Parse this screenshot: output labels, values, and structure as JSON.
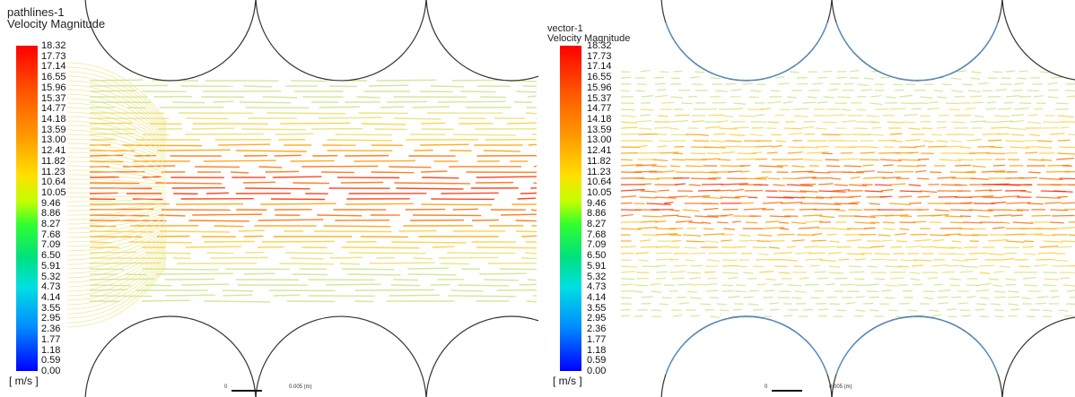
{
  "left": {
    "title": "pathlines-1",
    "subtitle": "Velocity Magnitude",
    "units": "[ m/s ]",
    "scale_zero": "0",
    "scale_label": "0.005 (m)"
  },
  "right": {
    "title": "vector-1",
    "subtitle": "Velocity Magnitude",
    "units": "[ m/s ]",
    "scale_zero": "0",
    "scale_label": "0.005 (m)"
  },
  "colorbar": {
    "ticks": [
      "18.32",
      "17.73",
      "17.14",
      "16.55",
      "15.96",
      "15.37",
      "14.77",
      "14.18",
      "13.59",
      "13.00",
      "12.41",
      "11.82",
      "11.23",
      "10.64",
      "10.05",
      "9.46",
      "8.86",
      "8.27",
      "7.68",
      "7.09",
      "6.50",
      "5.91",
      "5.32",
      "4.73",
      "4.14",
      "3.55",
      "2.95",
      "2.36",
      "1.77",
      "1.18",
      "0.59",
      "0.00"
    ],
    "colors": [
      "#ff0000",
      "#ff5a00",
      "#ff9a00",
      "#ffe000",
      "#c0ff00",
      "#30ff30",
      "#00e080",
      "#00e0e0",
      "#0090ff",
      "#0000ff"
    ]
  },
  "flow_colors": [
    "#ff2a00",
    "#ff6a00",
    "#ff9d00",
    "#ffcc33",
    "#e8e070",
    "#c9e58a"
  ]
}
